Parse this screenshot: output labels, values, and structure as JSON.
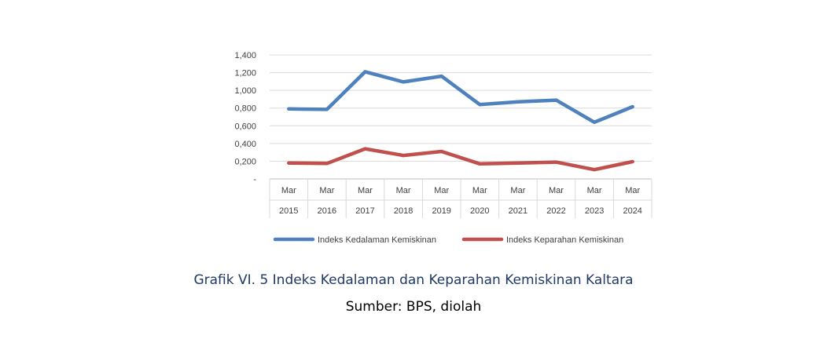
{
  "chart_data": {
    "type": "line",
    "categories": [
      [
        "Mar",
        "2015"
      ],
      [
        "Mar",
        "2016"
      ],
      [
        "Mar",
        "2017"
      ],
      [
        "Mar",
        "2018"
      ],
      [
        "Mar",
        "2019"
      ],
      [
        "Mar",
        "2020"
      ],
      [
        "Mar",
        "2021"
      ],
      [
        "Mar",
        "2022"
      ],
      [
        "Mar",
        "2023"
      ],
      [
        "Mar",
        "2024"
      ]
    ],
    "series": [
      {
        "name": "Indeks Kedalaman Kemiskinan",
        "color": "#4f81bd",
        "values": [
          0.79,
          0.785,
          1.21,
          1.095,
          1.16,
          0.84,
          0.87,
          0.89,
          0.64,
          0.815
        ]
      },
      {
        "name": "Indeks Keparahan Kemiskinan",
        "color": "#c0504d",
        "values": [
          0.18,
          0.175,
          0.34,
          0.265,
          0.31,
          0.17,
          0.18,
          0.19,
          0.105,
          0.195
        ]
      }
    ],
    "yticks": [
      "-",
      "0,200",
      "0,400",
      "0,600",
      "0,800",
      "1,000",
      "1,200",
      "1,400"
    ],
    "ylim": [
      0,
      1.4
    ],
    "grid": true,
    "legend": "bottom"
  },
  "caption": {
    "title": "Grafik VI. 5 Indeks Kedalaman dan Keparahan Kemiskinan Kaltara",
    "source": "Sumber: BPS, diolah"
  }
}
